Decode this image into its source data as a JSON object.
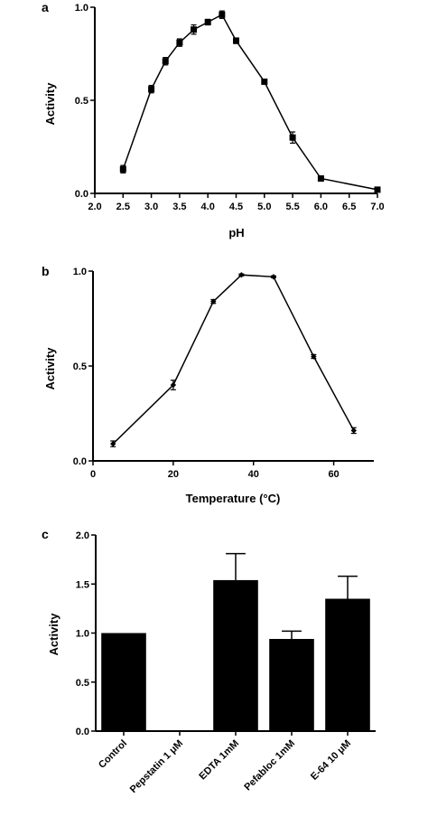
{
  "chart_data": [
    {
      "type": "line",
      "panel_label": "a",
      "xlabel": "pH",
      "ylabel": "Activity",
      "xlim": [
        2.0,
        7.0
      ],
      "ylim": [
        0.0,
        1.0
      ],
      "x_ticks": [
        "2.0",
        "2.5",
        "3.0",
        "3.5",
        "4.0",
        "4.5",
        "5.0",
        "5.5",
        "6.0",
        "6.5",
        "7.0"
      ],
      "y_ticks": [
        "0.0",
        "0.5",
        "1.0"
      ],
      "marker": "square",
      "series": [
        {
          "x": [
            2.5,
            3.0,
            3.25,
            3.5,
            3.75,
            4.0,
            4.25,
            4.5,
            5.0,
            5.5,
            6.0,
            7.0
          ],
          "y": [
            0.13,
            0.56,
            0.71,
            0.81,
            0.88,
            0.92,
            0.96,
            0.82,
            0.6,
            0.3,
            0.08,
            0.02
          ],
          "err": [
            0.02,
            0.02,
            0.02,
            0.02,
            0.025,
            0.015,
            0.02,
            0.015,
            0.01,
            0.03,
            0.01,
            0.01
          ]
        }
      ]
    },
    {
      "type": "line",
      "panel_label": "b",
      "xlabel": "Temperature (°C)",
      "ylabel": "Activity",
      "xlim": [
        0,
        70
      ],
      "ylim": [
        0.0,
        1.0
      ],
      "x_ticks": [
        "0",
        "20",
        "40",
        "60"
      ],
      "y_ticks": [
        "0.0",
        "0.5",
        "1.0"
      ],
      "marker": "diamond",
      "series": [
        {
          "x": [
            5,
            20,
            30,
            37,
            45,
            55,
            65
          ],
          "y": [
            0.09,
            0.4,
            0.84,
            0.98,
            0.97,
            0.55,
            0.16
          ],
          "err": [
            0.015,
            0.025,
            0.01,
            0.005,
            0.005,
            0.01,
            0.015
          ]
        }
      ]
    },
    {
      "type": "bar",
      "panel_label": "c",
      "xlabel": "",
      "ylabel": "Activity",
      "ylim": [
        0.0,
        2.0
      ],
      "y_ticks": [
        "0.0",
        "0.5",
        "1.0",
        "1.5",
        "2.0"
      ],
      "categories": [
        "Control",
        "Pepstatin 1 μM",
        "EDTA 1mM",
        "Pefabloc 1mM",
        "E-64 10 μM"
      ],
      "values": [
        1.0,
        0.0,
        1.54,
        0.94,
        1.35
      ],
      "err": [
        0.0,
        0.0,
        0.27,
        0.08,
        0.23
      ]
    }
  ],
  "colors": {
    "ink": "#000000",
    "background": "#ffffff",
    "bar_fill": "#000000"
  }
}
